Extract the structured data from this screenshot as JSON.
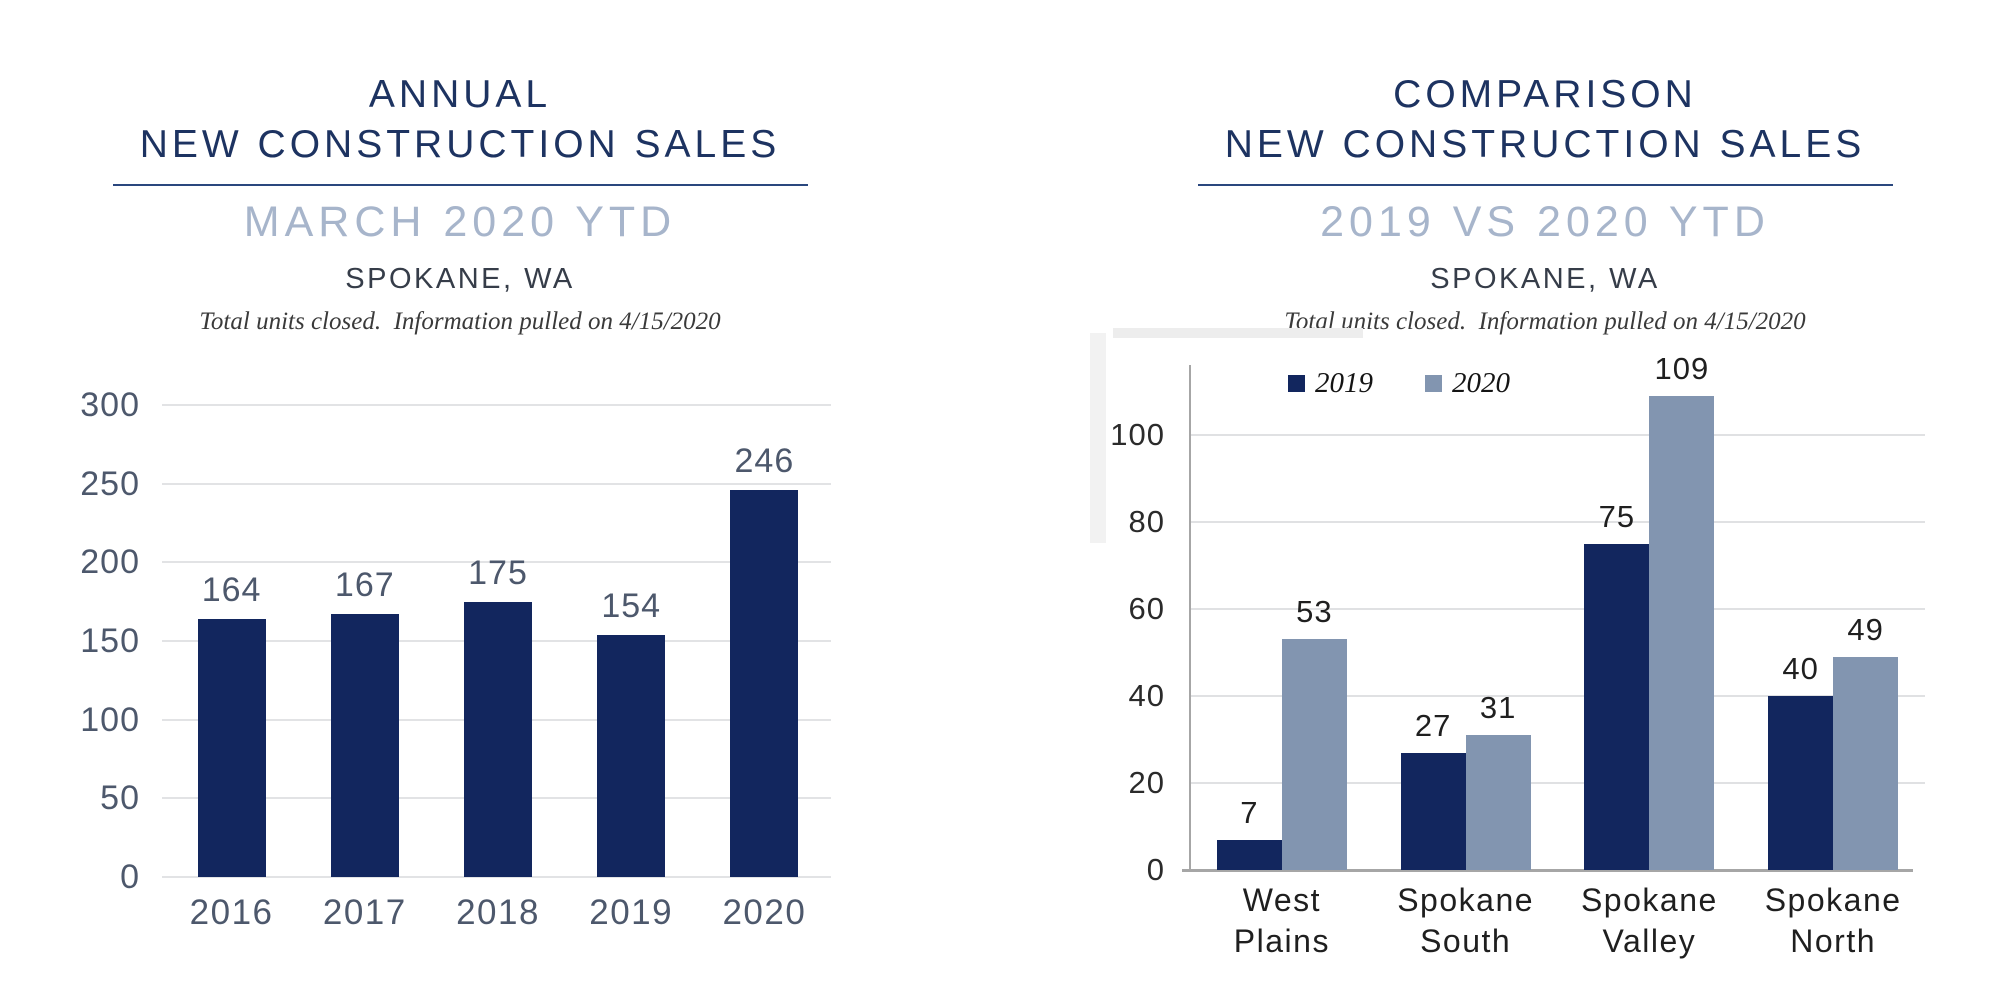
{
  "colors": {
    "title_navy": "#1d3361",
    "rule_navy": "#2a477e",
    "subtitle_light": "#a7b5cb",
    "bar_navy": "#12265e",
    "bar_slate": "#8295b0",
    "gridline": "#e2e3e5",
    "axis_gray": "#a6a6a6",
    "left_label_slate": "#4d586c",
    "right_label_dark": "#1f1f1f"
  },
  "panels": [
    {
      "title_line1": "ANNUAL",
      "title_line2": "NEW CONSTRUCTION SALES",
      "subtitle": "MARCH 2020 YTD",
      "location": "SPOKANE, WA",
      "note": "Total units closed.  Information pulled on 4/15/2020"
    },
    {
      "title_line1": "COMPARISON",
      "title_line2": "NEW CONSTRUCTION SALES",
      "subtitle": "2019 VS 2020 YTD",
      "location": "SPOKANE, WA",
      "note": "Total units closed.  Information pulled on 4/15/2020"
    }
  ],
  "chart_data": [
    {
      "type": "bar",
      "title": "ANNUAL NEW CONSTRUCTION SALES — MARCH 2020 YTD — SPOKANE, WA",
      "categories": [
        "2016",
        "2017",
        "2018",
        "2019",
        "2020"
      ],
      "values": [
        164,
        167,
        175,
        154,
        246
      ],
      "bar_color": "#12265e",
      "ylim": [
        0,
        300
      ],
      "yticks": [
        0,
        50,
        100,
        150,
        200,
        250,
        300
      ],
      "grid": true,
      "data_labels": true,
      "legend": "none"
    },
    {
      "type": "bar",
      "title": "COMPARISON NEW CONSTRUCTION SALES — 2019 VS 2020 YTD — SPOKANE, WA",
      "categories": [
        "West Plains",
        "Spokane South",
        "Spokane Valley",
        "Spokane North"
      ],
      "series": [
        {
          "name": "2019",
          "color": "#12265e",
          "values": [
            7,
            27,
            75,
            40
          ]
        },
        {
          "name": "2020",
          "color": "#8295b0",
          "values": [
            53,
            31,
            109,
            49
          ]
        }
      ],
      "ylim": [
        0,
        116
      ],
      "yticks": [
        0,
        20,
        40,
        60,
        80,
        100
      ],
      "grid": true,
      "data_labels": true,
      "legend": "top"
    }
  ]
}
